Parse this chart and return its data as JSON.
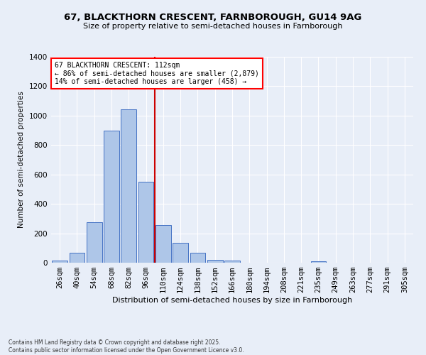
{
  "title_line1": "67, BLACKTHORN CRESCENT, FARNBOROUGH, GU14 9AG",
  "title_line2": "Size of property relative to semi-detached houses in Farnborough",
  "xlabel": "Distribution of semi-detached houses by size in Farnborough",
  "ylabel": "Number of semi-detached properties",
  "annotation_line1": "67 BLACKTHORN CRESCENT: 112sqm",
  "annotation_line2": "← 86% of semi-detached houses are smaller (2,879)",
  "annotation_line3": "14% of semi-detached houses are larger (458) →",
  "bar_categories": [
    "26sqm",
    "40sqm",
    "54sqm",
    "68sqm",
    "82sqm",
    "96sqm",
    "110sqm",
    "124sqm",
    "138sqm",
    "152sqm",
    "166sqm",
    "180sqm",
    "194sqm",
    "208sqm",
    "221sqm",
    "235sqm",
    "249sqm",
    "263sqm",
    "277sqm",
    "291sqm",
    "305sqm"
  ],
  "bar_values": [
    15,
    70,
    275,
    900,
    1045,
    550,
    255,
    135,
    70,
    20,
    15,
    0,
    0,
    0,
    0,
    10,
    0,
    0,
    0,
    0,
    0
  ],
  "bar_color": "#aec6e8",
  "bar_edge_color": "#4472c4",
  "vline_color": "#cc0000",
  "vline_idx": 6,
  "background_color": "#e8eef8",
  "grid_color": "#ffffff",
  "ylim": [
    0,
    1400
  ],
  "yticks": [
    0,
    200,
    400,
    600,
    800,
    1000,
    1200,
    1400
  ],
  "footnote_line1": "Contains HM Land Registry data © Crown copyright and database right 2025.",
  "footnote_line2": "Contains public sector information licensed under the Open Government Licence v3.0."
}
